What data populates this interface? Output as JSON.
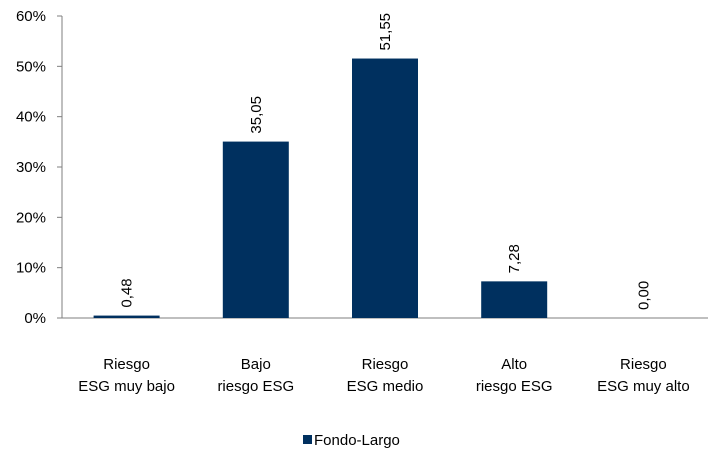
{
  "chart_data": {
    "type": "bar",
    "categories": [
      [
        "Riesgo",
        "ESG muy bajo"
      ],
      [
        "Bajo",
        "riesgo ESG"
      ],
      [
        "Riesgo",
        "ESG medio"
      ],
      [
        "Alto",
        "riesgo ESG"
      ],
      [
        "Riesgo",
        "ESG muy alto"
      ]
    ],
    "series": [
      {
        "name": "Fondo-Largo",
        "values": [
          0.48,
          35.05,
          51.55,
          7.28,
          0.0
        ],
        "data_labels": [
          "0,48",
          "35,05",
          "51,55",
          "7,28",
          "0,00"
        ],
        "color": "#00305F"
      }
    ],
    "title": "",
    "xlabel": "",
    "ylabel": "",
    "ylim": [
      0,
      60
    ],
    "yticks": [
      0,
      10,
      20,
      30,
      40,
      50,
      60
    ],
    "ytick_labels": [
      "0%",
      "10%",
      "20%",
      "30%",
      "40%",
      "50%",
      "60%"
    ],
    "grid": false,
    "legend_position": "bottom-center"
  }
}
